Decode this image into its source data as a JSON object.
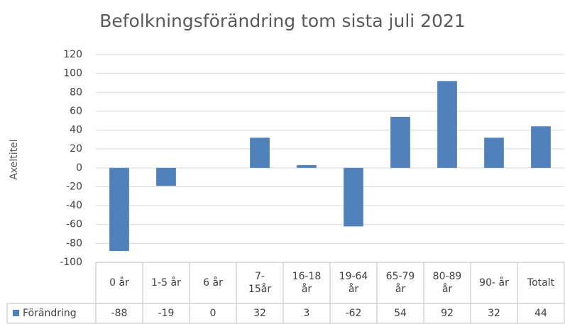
{
  "chart_data": {
    "type": "bar",
    "title": "Befolkningsförändring tom sista juli 2021",
    "y_label": "Axeltitel",
    "categories": [
      "0 år",
      "1-5 år",
      "6 år",
      "7-\n15år",
      "16-18\når",
      "19-64\når",
      "65-79\når",
      "80-89\når",
      "90- år",
      "Totalt"
    ],
    "series": [
      {
        "name": "Förändring",
        "color": "#4f81bd",
        "values": [
          -88,
          -19,
          0,
          32,
          3,
          -62,
          54,
          92,
          32,
          44
        ]
      }
    ],
    "ylim": [
      -100,
      120
    ],
    "yticks": [
      -100,
      -80,
      -60,
      -40,
      -20,
      0,
      20,
      40,
      60,
      80,
      100,
      120
    ],
    "grid": true
  }
}
